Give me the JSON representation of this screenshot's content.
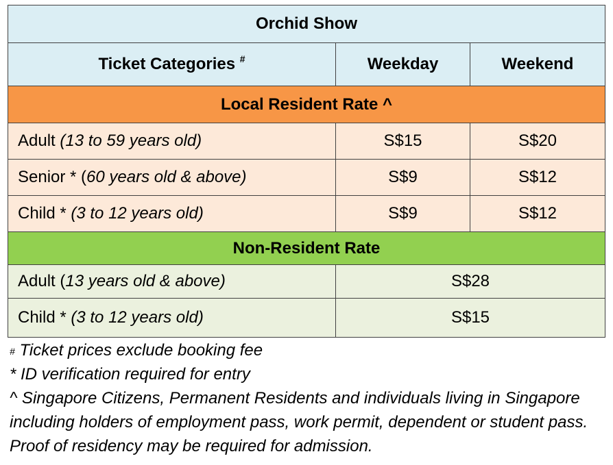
{
  "colors": {
    "header_bg": "#dbeef4",
    "local_header_bg": "#f79646",
    "local_row_bg": "#fde9d9",
    "nonres_header_bg": "#92d050",
    "nonres_row_bg": "#ebf1de",
    "border": "#404040"
  },
  "table": {
    "title": "Orchid Show",
    "columns": {
      "category": "Ticket Categories",
      "category_mark": "#",
      "weekday": "Weekday",
      "weekend": "Weekend"
    },
    "local": {
      "heading": "Local Resident Rate ^",
      "rows": [
        {
          "label": "Adult",
          "detail": "(13 to 59 years old)",
          "weekday": "S$15",
          "weekend": "S$20"
        },
        {
          "label": "Senior * (",
          "detail": "60 years old & above)",
          "weekday": "S$9",
          "weekend": "S$12"
        },
        {
          "label": "Child *",
          "detail": "(3 to 12 years old)",
          "weekday": "S$9",
          "weekend": "S$12"
        }
      ]
    },
    "nonresident": {
      "heading": "Non-Resident Rate",
      "rows": [
        {
          "label": "Adult (",
          "detail": "13 years old & above)",
          "price": "S$28"
        },
        {
          "label": "Child *",
          "detail": "(3 to 12 years old)",
          "price": "S$15"
        }
      ]
    }
  },
  "notes": {
    "booking_mark": "#",
    "booking": "Ticket prices exclude booking fee",
    "id": "* ID verification required for entry",
    "residency": "^ Singapore Citizens, Permanent Residents and individuals living in Singapore including holders of employment pass, work permit, dependent or student pass. Proof of residency may be required for admission."
  }
}
